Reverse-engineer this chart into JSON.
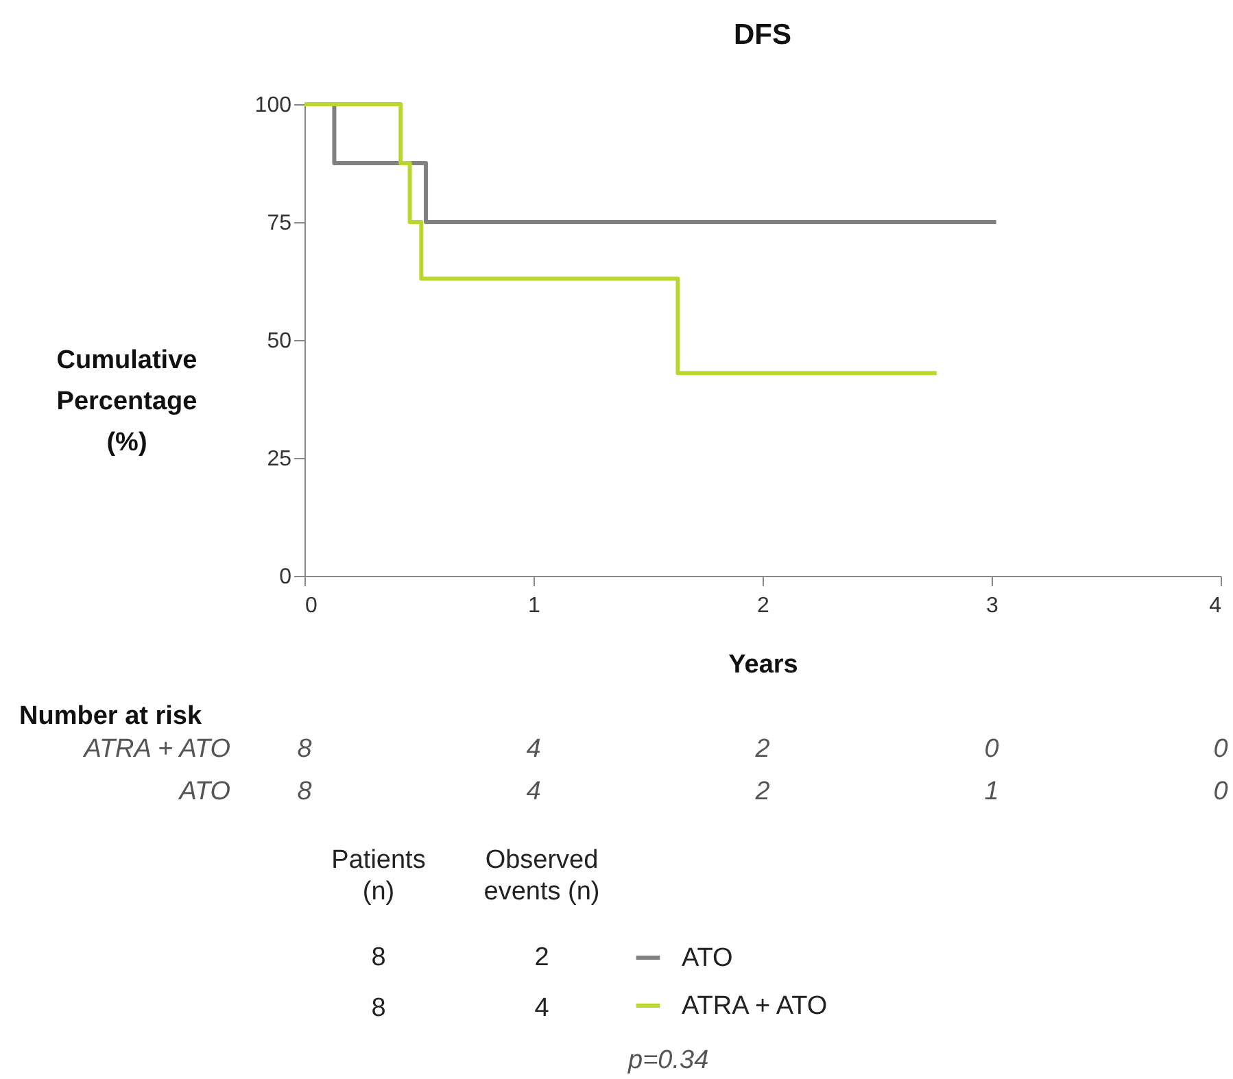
{
  "chart_data": {
    "type": "step",
    "title": "DFS",
    "xlabel": "Years",
    "ylabel": "Cumulative Percentage (%)",
    "xlim": [
      0,
      4
    ],
    "xticks": [
      0,
      1,
      2,
      3,
      4
    ],
    "ylim": [
      0,
      100
    ],
    "yticks": [
      0,
      25,
      50,
      75,
      100
    ],
    "grid": false,
    "legend": "bottom",
    "series": [
      {
        "name": "ATO",
        "color": "#808080",
        "x": [
          0,
          0.13,
          0.53,
          3.02
        ],
        "values": [
          100,
          87.5,
          75,
          75
        ]
      },
      {
        "name": "ATRA + ATO",
        "color": "#bcd630",
        "x": [
          0,
          0.42,
          0.46,
          0.51,
          1.63,
          2.76
        ],
        "values": [
          100,
          87.5,
          75,
          63,
          43,
          43
        ]
      }
    ],
    "annotations": [
      "Number at risk",
      "ATRA + ATO",
      "8",
      "4",
      "2",
      "0",
      "0",
      "ATO",
      "8",
      "4",
      "2",
      "1",
      "0",
      "Patients (n)",
      "Observed events (n)",
      "8",
      "2",
      "8",
      "4",
      "p=0.34"
    ]
  }
}
